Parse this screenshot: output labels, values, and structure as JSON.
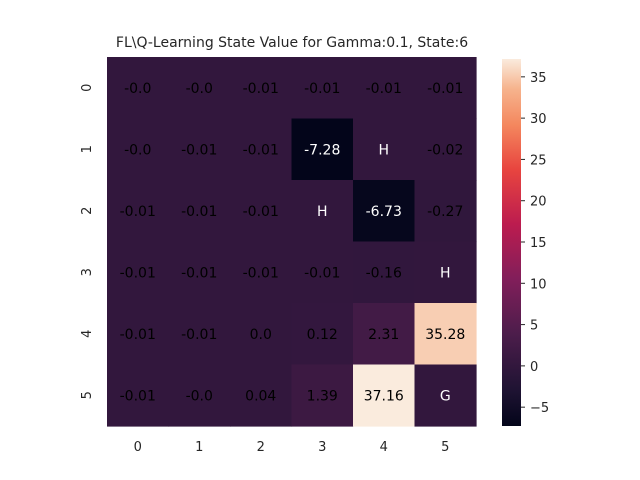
{
  "chart_data": {
    "type": "heatmap",
    "title": "FL\\Q-Learning State Value for Gamma:0.1, State:6",
    "xlabel": "",
    "ylabel": "",
    "x_ticks": [
      "0",
      "1",
      "2",
      "3",
      "4",
      "5"
    ],
    "y_ticks": [
      "0",
      "1",
      "2",
      "3",
      "4",
      "5"
    ],
    "values": [
      [
        -0.0,
        -0.0,
        -0.01,
        -0.01,
        -0.01,
        -0.01
      ],
      [
        -0.0,
        -0.01,
        -0.01,
        -7.28,
        null,
        -0.02
      ],
      [
        -0.01,
        -0.01,
        -0.01,
        null,
        -6.73,
        -0.27
      ],
      [
        -0.01,
        -0.01,
        -0.01,
        -0.01,
        -0.16,
        null
      ],
      [
        -0.01,
        -0.01,
        0.0,
        0.12,
        2.31,
        35.28
      ],
      [
        -0.01,
        -0.0,
        0.04,
        1.39,
        37.16,
        null
      ]
    ],
    "labels": [
      [
        "-0.0",
        "-0.0",
        "-0.01",
        "-0.01",
        "-0.01",
        "-0.01"
      ],
      [
        "-0.0",
        "-0.01",
        "-0.01",
        "-7.28",
        "H",
        "-0.02"
      ],
      [
        "-0.01",
        "-0.01",
        "-0.01",
        "H",
        "-6.73",
        "-0.27"
      ],
      [
        "-0.01",
        "-0.01",
        "-0.01",
        "-0.01",
        "-0.16",
        "H"
      ],
      [
        "-0.01",
        "-0.01",
        "0.0",
        "0.12",
        "2.31",
        "35.28"
      ],
      [
        "-0.01",
        "-0.0",
        "0.04",
        "1.39",
        "37.16",
        "G"
      ]
    ],
    "colorbar": {
      "ticks": [
        -5,
        0,
        5,
        10,
        15,
        20,
        25,
        30,
        35
      ],
      "range": [
        -7.28,
        37.16
      ],
      "colormap": "rocket"
    }
  }
}
